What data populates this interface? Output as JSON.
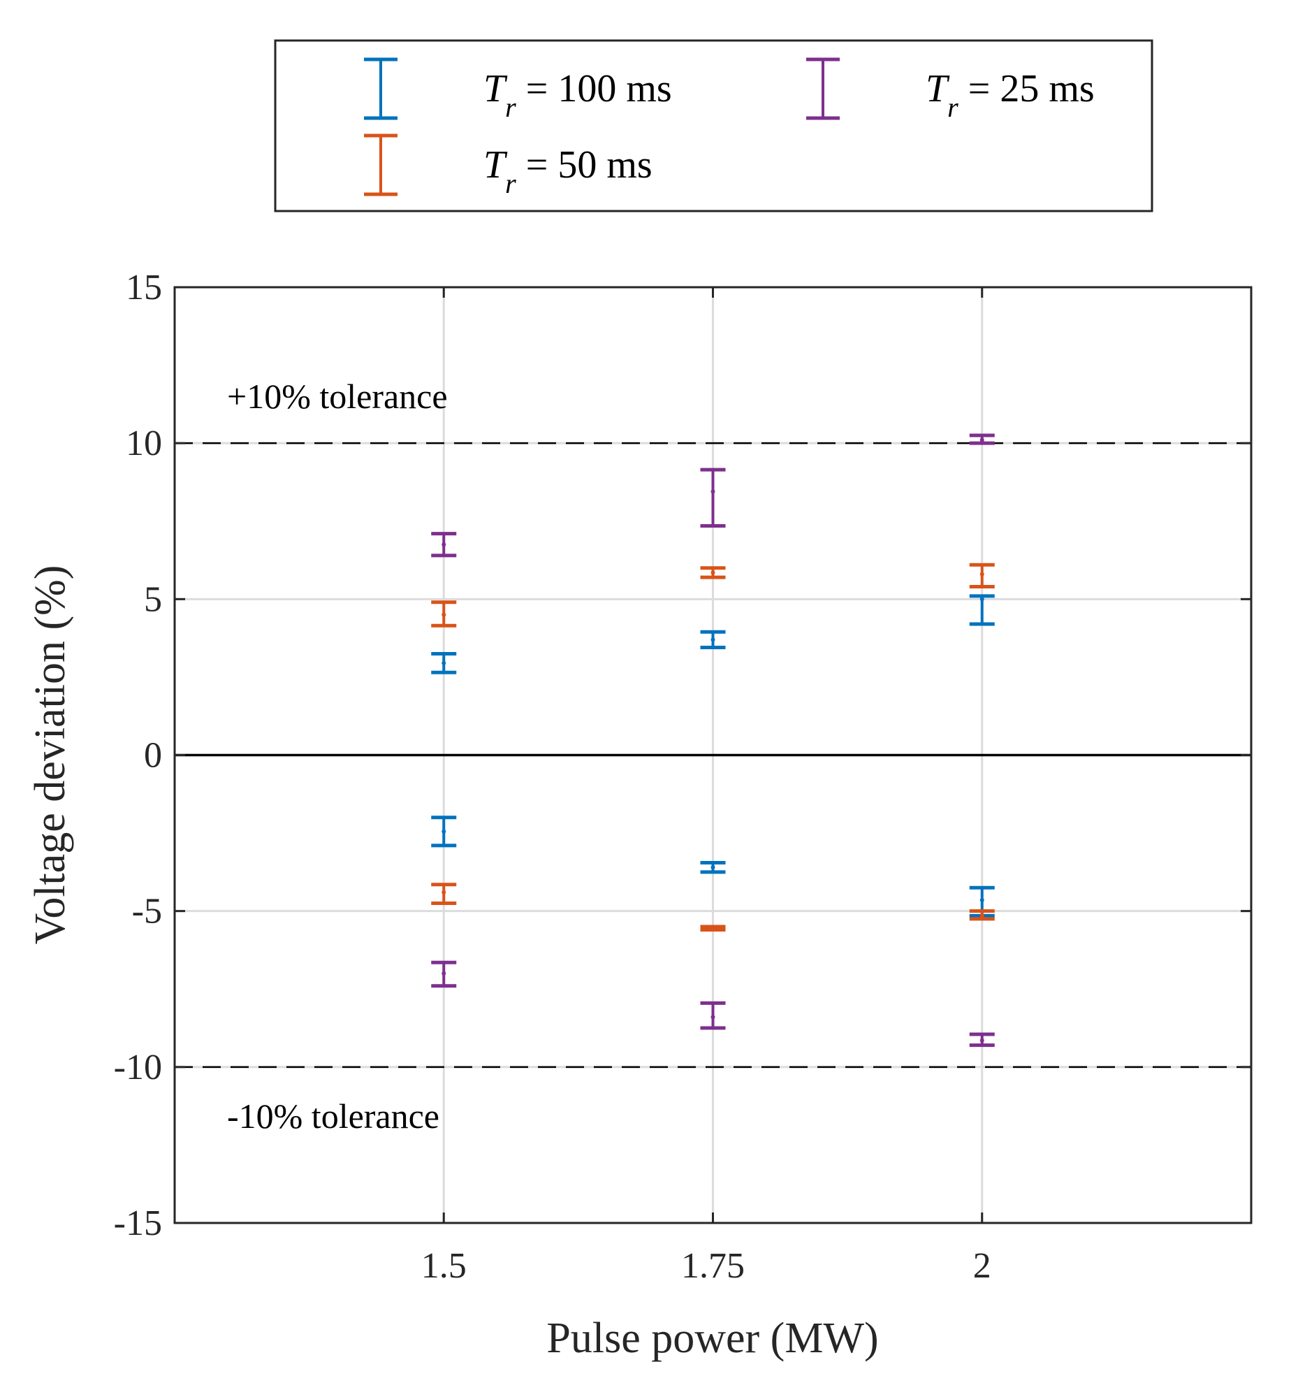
{
  "chart_data": {
    "type": "errorbar",
    "xlabel": "Pulse power (MW)",
    "ylabel": "Voltage deviation (%)",
    "x_ticks": [
      "1.5",
      "1.75",
      "2"
    ],
    "x_tick_values": [
      1.5,
      1.75,
      2
    ],
    "xlim": [
      1.25,
      2.25
    ],
    "y_ticks": [
      "15",
      "10",
      "5",
      "0",
      "-5",
      "-10",
      "-15"
    ],
    "y_tick_values": [
      15,
      10,
      5,
      0,
      -5,
      -10,
      -15
    ],
    "ylim": [
      -15,
      15
    ],
    "grid": true,
    "legend_position": "top, outside plot",
    "legend_columns": 2,
    "reference_lines": [
      {
        "y": 10,
        "style": "dashed",
        "label": "+10% tolerance"
      },
      {
        "y": -10,
        "style": "dashed",
        "label": "-10% tolerance"
      },
      {
        "y": 0,
        "style": "solid",
        "label": ""
      }
    ],
    "series": [
      {
        "name": "T_r = 100 ms",
        "legend": {
          "symbol": "T",
          "subscript": "r",
          "text": " = 100 ms"
        },
        "color": "#0072BD",
        "x": [
          1.5,
          1.75,
          2,
          1.5,
          1.75,
          2
        ],
        "y": [
          2.95,
          3.7,
          5.0,
          -2.45,
          -3.6,
          -4.65
        ],
        "low": [
          2.65,
          3.45,
          4.2,
          -2.9,
          -3.75,
          -5.15
        ],
        "high": [
          3.25,
          3.95,
          5.1,
          -2.0,
          -3.45,
          -4.25
        ]
      },
      {
        "name": "T_r = 50 ms",
        "legend": {
          "symbol": "T",
          "subscript": "r",
          "text": " = 50 ms"
        },
        "color": "#D95319",
        "x": [
          1.5,
          1.75,
          2,
          1.5,
          1.75,
          2
        ],
        "y": [
          4.5,
          5.85,
          5.8,
          -4.4,
          -5.55,
          -5.15
        ],
        "low": [
          4.15,
          5.7,
          5.4,
          -4.75,
          -5.6,
          -5.25
        ],
        "high": [
          4.9,
          6.0,
          6.1,
          -4.15,
          -5.5,
          -5.0
        ]
      },
      {
        "name": "T_r = 25 ms",
        "legend": {
          "symbol": "T",
          "subscript": "r",
          "text": " = 25 ms"
        },
        "color": "#7E2F8E",
        "x": [
          1.5,
          1.75,
          2,
          1.5,
          1.75,
          2
        ],
        "y": [
          6.75,
          8.45,
          10.1,
          -7.0,
          -8.4,
          -9.15
        ],
        "low": [
          6.4,
          7.35,
          10.0,
          -7.4,
          -8.75,
          -9.3
        ],
        "high": [
          7.1,
          9.15,
          10.25,
          -6.65,
          -7.95,
          -8.95
        ]
      }
    ]
  }
}
